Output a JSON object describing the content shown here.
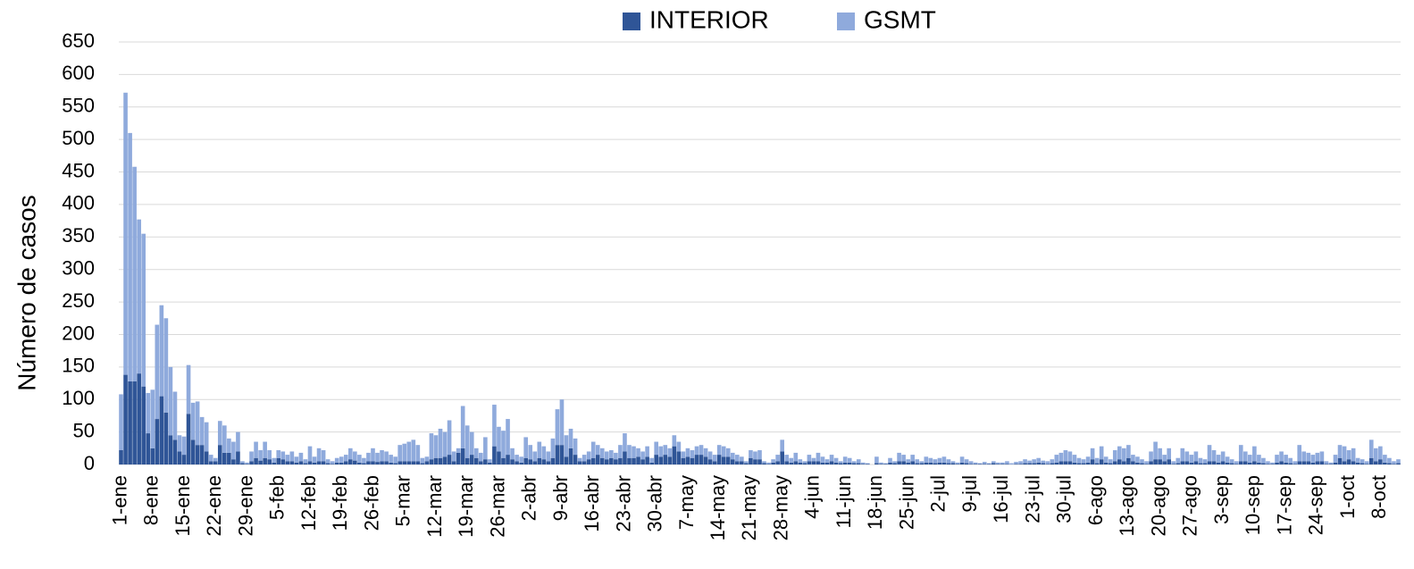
{
  "chart_data": {
    "type": "stacked_bar",
    "y_label": "Número de casos",
    "categories": [
      "1-ene",
      null,
      null,
      null,
      null,
      null,
      null,
      "8-ene",
      null,
      null,
      null,
      null,
      null,
      null,
      "15-ene",
      null,
      null,
      null,
      null,
      null,
      null,
      "22-ene",
      null,
      null,
      null,
      null,
      null,
      null,
      "29-ene",
      null,
      null,
      null,
      null,
      null,
      null,
      "5-feb",
      null,
      null,
      null,
      null,
      null,
      null,
      "12-feb",
      null,
      null,
      null,
      null,
      null,
      null,
      "19-feb",
      null,
      null,
      null,
      null,
      null,
      null,
      "26-feb",
      null,
      null,
      null,
      null,
      null,
      null,
      "5-mar",
      null,
      null,
      null,
      null,
      null,
      null,
      "12-mar",
      null,
      null,
      null,
      null,
      null,
      null,
      "19-mar",
      null,
      null,
      null,
      null,
      null,
      null,
      "26-mar",
      null,
      null,
      null,
      null,
      null,
      null,
      "2-abr",
      null,
      null,
      null,
      null,
      null,
      null,
      "9-abr",
      null,
      null,
      null,
      null,
      null,
      null,
      "16-abr",
      null,
      null,
      null,
      null,
      null,
      null,
      "23-abr",
      null,
      null,
      null,
      null,
      null,
      null,
      "30-abr",
      null,
      null,
      null,
      null,
      null,
      null,
      "7-may",
      null,
      null,
      null,
      null,
      null,
      null,
      "14-may",
      null,
      null,
      null,
      null,
      null,
      null,
      "21-may",
      null,
      null,
      null,
      null,
      null,
      null,
      "28-may",
      null,
      null,
      null,
      null,
      null,
      null,
      "4-jun",
      null,
      null,
      null,
      null,
      null,
      null,
      "11-jun",
      null,
      null,
      null,
      null,
      null,
      null,
      "18-jun",
      null,
      null,
      null,
      null,
      null,
      null,
      "25-jun",
      null,
      null,
      null,
      null,
      null,
      null,
      "2-jul",
      null,
      null,
      null,
      null,
      null,
      null,
      "9-jul",
      null,
      null,
      null,
      null,
      null,
      null,
      "16-jul",
      null,
      null,
      null,
      null,
      null,
      null,
      "23-jul",
      null,
      null,
      null,
      null,
      null,
      null,
      "30-jul",
      null,
      null,
      null,
      null,
      null,
      null,
      "6-ago",
      null,
      null,
      null,
      null,
      null,
      null,
      "13-ago",
      null,
      null,
      null,
      null,
      null,
      null,
      "20-ago",
      null,
      null,
      null,
      null,
      null,
      null,
      "27-ago",
      null,
      null,
      null,
      null,
      null,
      null,
      "3-sep",
      null,
      null,
      null,
      null,
      null,
      null,
      "10-sep",
      null,
      null,
      null,
      null,
      null,
      null,
      "17-sep",
      null,
      null,
      null,
      null,
      null,
      null,
      "24-sep",
      null,
      null,
      null,
      null,
      null,
      null,
      "1-oct",
      null,
      null,
      null,
      null,
      null,
      null,
      "8-oct",
      null,
      null,
      null,
      null
    ],
    "series": [
      {
        "name": "INTERIOR",
        "color": "#2f5597",
        "values": [
          22,
          138,
          128,
          128,
          140,
          120,
          48,
          25,
          70,
          105,
          80,
          45,
          38,
          20,
          15,
          78,
          38,
          30,
          30,
          20,
          5,
          5,
          30,
          18,
          18,
          8,
          20,
          2,
          1,
          5,
          10,
          6,
          10,
          8,
          3,
          10,
          8,
          5,
          5,
          3,
          5,
          2,
          5,
          3,
          5,
          5,
          2,
          1,
          3,
          3,
          5,
          8,
          6,
          3,
          2,
          5,
          5,
          4,
          5,
          5,
          3,
          2,
          5,
          5,
          5,
          5,
          5,
          2,
          5,
          8,
          10,
          10,
          12,
          15,
          5,
          18,
          25,
          10,
          15,
          10,
          5,
          8,
          3,
          28,
          20,
          10,
          15,
          8,
          5,
          3,
          10,
          8,
          5,
          10,
          8,
          5,
          10,
          30,
          30,
          12,
          25,
          15,
          5,
          5,
          8,
          10,
          15,
          10,
          8,
          10,
          8,
          10,
          20,
          10,
          10,
          12,
          8,
          12,
          3,
          15,
          12,
          15,
          12,
          28,
          20,
          10,
          12,
          10,
          15,
          15,
          12,
          8,
          5,
          15,
          12,
          12,
          8,
          5,
          5,
          2,
          10,
          8,
          8,
          2,
          1,
          3,
          5,
          20,
          5,
          3,
          5,
          3,
          2,
          5,
          5,
          5,
          3,
          3,
          5,
          3,
          2,
          3,
          3,
          2,
          2,
          1,
          1,
          0,
          2,
          1,
          1,
          3,
          2,
          5,
          5,
          3,
          5,
          2,
          2,
          3,
          3,
          2,
          3,
          3,
          2,
          2,
          1,
          3,
          2,
          1,
          1,
          1,
          1,
          1,
          2,
          1,
          1,
          1,
          0,
          1,
          1,
          2,
          2,
          2,
          3,
          2,
          1,
          2,
          3,
          5,
          5,
          5,
          3,
          2,
          2,
          3,
          8,
          2,
          8,
          3,
          2,
          5,
          8,
          5,
          10,
          5,
          3,
          2,
          1,
          5,
          8,
          8,
          5,
          8,
          1,
          2,
          5,
          5,
          3,
          5,
          2,
          2,
          5,
          5,
          3,
          5,
          3,
          2,
          1,
          5,
          5,
          3,
          5,
          3,
          2,
          1,
          1,
          3,
          5,
          3,
          2,
          1,
          5,
          5,
          5,
          3,
          5,
          5,
          1,
          1,
          3,
          10,
          5,
          8,
          5,
          3,
          2,
          1,
          10,
          5,
          8,
          3,
          2,
          1,
          2
        ]
      },
      {
        "name": "GSMT",
        "color": "#8faadc",
        "values": [
          86,
          434,
          382,
          330,
          237,
          235,
          62,
          90,
          145,
          140,
          145,
          105,
          74,
          25,
          28,
          75,
          57,
          67,
          43,
          45,
          10,
          5,
          37,
          42,
          22,
          27,
          30,
          3,
          2,
          15,
          25,
          16,
          25,
          14,
          7,
          12,
          12,
          10,
          15,
          9,
          13,
          6,
          23,
          9,
          20,
          17,
          6,
          4,
          7,
          9,
          10,
          17,
          14,
          12,
          8,
          13,
          20,
          14,
          17,
          15,
          12,
          10,
          25,
          27,
          30,
          33,
          25,
          8,
          7,
          40,
          35,
          45,
          38,
          53,
          15,
          7,
          65,
          50,
          35,
          15,
          13,
          34,
          5,
          64,
          38,
          42,
          55,
          17,
          10,
          9,
          32,
          22,
          15,
          25,
          20,
          15,
          30,
          55,
          70,
          33,
          30,
          25,
          5,
          10,
          12,
          25,
          15,
          15,
          12,
          12,
          10,
          20,
          28,
          20,
          18,
          13,
          12,
          16,
          7,
          20,
          16,
          15,
          13,
          17,
          15,
          10,
          13,
          12,
          13,
          15,
          13,
          12,
          10,
          15,
          16,
          13,
          10,
          10,
          7,
          3,
          12,
          12,
          14,
          3,
          2,
          5,
          10,
          18,
          10,
          7,
          13,
          5,
          3,
          10,
          5,
          13,
          9,
          5,
          10,
          7,
          3,
          9,
          7,
          3,
          6,
          2,
          1,
          0,
          10,
          2,
          1,
          7,
          3,
          13,
          10,
          5,
          10,
          6,
          3,
          9,
          7,
          6,
          7,
          9,
          6,
          3,
          2,
          9,
          6,
          4,
          2,
          1,
          3,
          1,
          3,
          2,
          2,
          4,
          2,
          3,
          4,
          6,
          4,
          6,
          7,
          4,
          4,
          6,
          12,
          13,
          17,
          15,
          12,
          8,
          6,
          9,
          17,
          8,
          20,
          9,
          6,
          17,
          20,
          20,
          20,
          10,
          9,
          6,
          4,
          15,
          27,
          17,
          10,
          17,
          4,
          8,
          20,
          15,
          12,
          15,
          8,
          6,
          25,
          17,
          12,
          15,
          9,
          6,
          4,
          25,
          15,
          12,
          23,
          12,
          8,
          4,
          2,
          12,
          15,
          12,
          8,
          4,
          25,
          15,
          13,
          12,
          13,
          15,
          4,
          2,
          12,
          20,
          23,
          14,
          20,
          7,
          6,
          4,
          28,
          20,
          20,
          12,
          8,
          4,
          6
        ]
      }
    ],
    "ylim": [
      0,
      650
    ],
    "yticks": [
      0,
      50,
      100,
      150,
      200,
      250,
      300,
      350,
      400,
      450,
      500,
      550,
      600,
      650
    ],
    "grid": true,
    "legend": "top"
  }
}
